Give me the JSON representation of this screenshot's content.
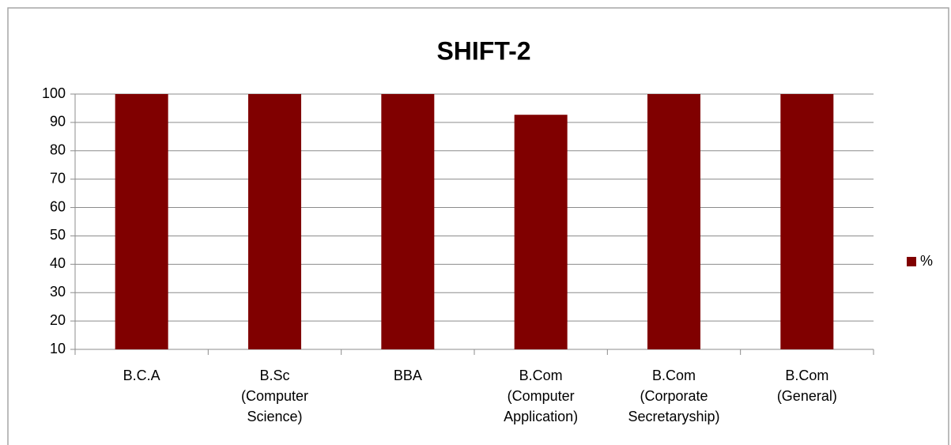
{
  "chart_data": {
    "type": "bar",
    "title": "SHIFT-2",
    "categories": [
      "B.C.A",
      "B.Sc (Computer Science)",
      "BBA",
      "B.Com (Computer Application)",
      "B.Com (Corporate Secretaryship)",
      "B.Com (General)"
    ],
    "series": [
      {
        "name": "%",
        "color": "#800000",
        "values": [
          100,
          100,
          100,
          92.7,
          100,
          100
        ]
      }
    ],
    "ylim": [
      10,
      100
    ],
    "yticks": [
      10,
      20,
      30,
      40,
      50,
      60,
      70,
      80,
      90,
      100
    ],
    "grid": true,
    "legend": "right"
  }
}
